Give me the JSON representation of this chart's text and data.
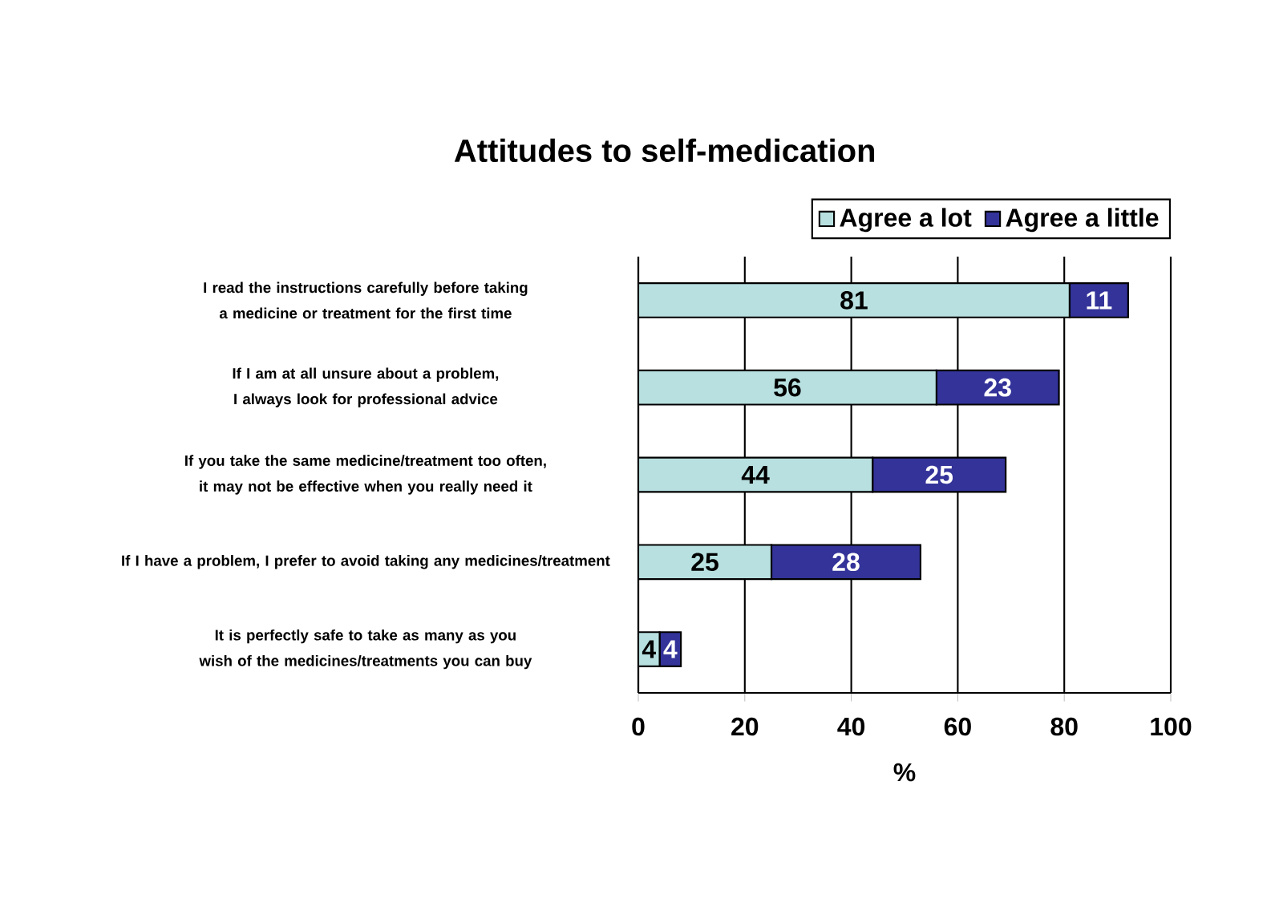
{
  "chart_data": {
    "type": "bar",
    "orientation": "horizontal",
    "stacked": true,
    "title": "Attitudes to self-medication",
    "xlabel": "%",
    "categories": [
      "I read the instructions carefully before taking a medicine or treatment for the first time",
      "If I am at all unsure about a problem, I always look for professional advice",
      "If you take the same medicine/treatment too often, it may not be effective when you really need it",
      "If I have a problem, I prefer to avoid taking any medicines/treatment",
      "It is perfectly safe to take as many as you wish of the medicines/treatments you can buy"
    ],
    "series": [
      {
        "name": "Agree a lot",
        "color": "#b8e0e0",
        "values": [
          81,
          56,
          44,
          25,
          4
        ]
      },
      {
        "name": "Agree a little",
        "color": "#333399",
        "values": [
          11,
          23,
          25,
          28,
          4
        ]
      }
    ],
    "xlim": [
      0,
      100
    ],
    "xticks": [
      0,
      20,
      40,
      60,
      80,
      100
    ],
    "grid": "x",
    "legend": "top right",
    "data_labels": true
  }
}
